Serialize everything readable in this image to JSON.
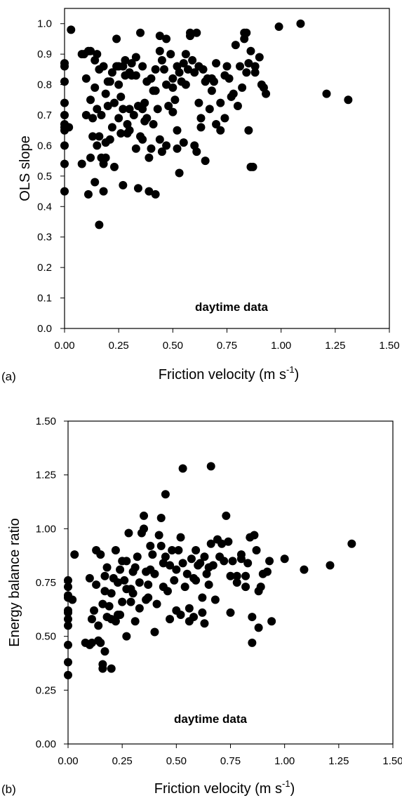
{
  "chart_data": [
    {
      "type": "scatter",
      "panel": "(a)",
      "annotation": "daytime data",
      "xlabel": "Friction velocity (m s",
      "xlabel_sup": "-1",
      "xlabel_end": ")",
      "ylabel": "OLS slope",
      "xlim": [
        0,
        1.5
      ],
      "ylim": [
        0,
        1.05
      ],
      "xticks": [
        "0.00",
        "0.25",
        "0.50",
        "0.75",
        "1.00",
        "1.25",
        "1.50"
      ],
      "yticks": [
        "0.0",
        "0.1",
        "0.2",
        "0.3",
        "0.4",
        "0.5",
        "0.6",
        "0.7",
        "0.8",
        "0.9",
        "1.0"
      ],
      "grid": false,
      "x": [
        0.0,
        0.0,
        0.0,
        0.0,
        0.0,
        0.0,
        0.0,
        0.0,
        0.0,
        0.0,
        0.0,
        0.03,
        0.02,
        0.08,
        0.09,
        0.1,
        0.1,
        0.11,
        0.12,
        0.12,
        0.13,
        0.13,
        0.14,
        0.14,
        0.15,
        0.15,
        0.16,
        0.16,
        0.17,
        0.17,
        0.18,
        0.18,
        0.19,
        0.19,
        0.2,
        0.2,
        0.21,
        0.22,
        0.22,
        0.23,
        0.24,
        0.24,
        0.25,
        0.25,
        0.26,
        0.26,
        0.27,
        0.27,
        0.28,
        0.28,
        0.29,
        0.3,
        0.3,
        0.31,
        0.31,
        0.32,
        0.33,
        0.33,
        0.34,
        0.35,
        0.35,
        0.36,
        0.36,
        0.37,
        0.38,
        0.38,
        0.39,
        0.4,
        0.4,
        0.41,
        0.42,
        0.42,
        0.43,
        0.44,
        0.44,
        0.45,
        0.45,
        0.46,
        0.47,
        0.47,
        0.48,
        0.49,
        0.5,
        0.5,
        0.51,
        0.52,
        0.52,
        0.53,
        0.54,
        0.55,
        0.55,
        0.56,
        0.57,
        0.58,
        0.59,
        0.6,
        0.6,
        0.61,
        0.62,
        0.63,
        0.63,
        0.64,
        0.65,
        0.66,
        0.67,
        0.68,
        0.7,
        0.7,
        0.72,
        0.74,
        0.75,
        0.76,
        0.78,
        0.8,
        0.81,
        0.82,
        0.83,
        0.84,
        0.85,
        0.85,
        0.86,
        0.87,
        0.88,
        0.9,
        0.92,
        0.93,
        0.99,
        1.09,
        1.21,
        1.31,
        0.16,
        0.11,
        0.14,
        0.18,
        0.27,
        0.34,
        0.39,
        0.42,
        0.53,
        0.86,
        0.44,
        0.58,
        0.33,
        0.23,
        0.21,
        0.12,
        0.65,
        0.72,
        0.47,
        0.36,
        0.25,
        0.29,
        0.52,
        0.61,
        0.69,
        0.74,
        0.79,
        0.83,
        0.91,
        0.19,
        0.08,
        0.15,
        0.3,
        0.37,
        0.41,
        0.5,
        0.56,
        0.62,
        0.68,
        0.77,
        0.84,
        0.88
      ],
      "y": [
        0.87,
        0.86,
        0.81,
        0.74,
        0.7,
        0.67,
        0.65,
        0.6,
        0.54,
        0.45,
        0.66,
        0.98,
        0.66,
        0.54,
        0.9,
        0.82,
        0.7,
        0.91,
        0.91,
        0.75,
        0.63,
        0.69,
        0.79,
        0.88,
        0.9,
        0.72,
        0.85,
        0.63,
        0.7,
        0.56,
        0.86,
        0.54,
        0.61,
        0.77,
        0.73,
        0.81,
        0.62,
        0.84,
        0.66,
        0.74,
        0.86,
        0.95,
        0.8,
        0.69,
        0.76,
        0.64,
        0.72,
        0.86,
        0.88,
        0.83,
        0.64,
        0.65,
        0.84,
        0.87,
        0.83,
        0.7,
        0.83,
        0.89,
        0.73,
        0.97,
        0.63,
        0.86,
        0.72,
        0.74,
        0.69,
        0.81,
        0.56,
        0.82,
        0.59,
        0.67,
        0.78,
        0.85,
        0.72,
        0.96,
        0.91,
        0.58,
        0.88,
        0.85,
        0.8,
        0.95,
        0.73,
        0.9,
        0.82,
        0.79,
        0.75,
        0.86,
        0.59,
        0.84,
        0.81,
        0.87,
        0.61,
        0.8,
        0.85,
        0.97,
        0.88,
        0.84,
        0.6,
        0.97,
        0.86,
        0.66,
        0.69,
        0.85,
        0.81,
        0.82,
        0.72,
        0.78,
        0.87,
        0.67,
        0.74,
        0.69,
        0.86,
        0.82,
        0.77,
        0.73,
        0.86,
        0.79,
        0.97,
        0.84,
        0.65,
        0.87,
        0.91,
        0.53,
        0.84,
        0.89,
        0.79,
        0.77,
        0.99,
        1.0,
        0.77,
        0.75,
        0.34,
        0.44,
        0.48,
        0.45,
        0.47,
        0.46,
        0.45,
        0.44,
        0.51,
        0.53,
        0.62,
        0.96,
        0.59,
        0.53,
        0.81,
        0.56,
        0.55,
        0.65,
        0.6,
        0.62,
        0.86,
        0.67,
        0.65,
        0.58,
        0.81,
        0.83,
        0.93,
        0.95,
        0.8,
        0.56,
        0.9,
        0.6,
        0.72,
        0.68,
        0.78,
        0.71,
        0.9,
        0.74,
        0.82,
        0.76,
        0.97,
        0.86
      ]
    },
    {
      "type": "scatter",
      "panel": "(b)",
      "annotation": "daytime data",
      "xlabel": "Friction velocity (m s",
      "xlabel_sup": "-1",
      "xlabel_end": ")",
      "ylabel": "Energy balance ratio",
      "xlim": [
        0,
        1.5
      ],
      "ylim": [
        0,
        1.5
      ],
      "xticks": [
        "0.00",
        "0.25",
        "0.50",
        "0.75",
        "1.00",
        "1.25",
        "1.50"
      ],
      "yticks": [
        "0.00",
        "0.25",
        "0.50",
        "0.75",
        "1.00",
        "1.25",
        "1.50"
      ],
      "grid": false,
      "x": [
        0.0,
        0.0,
        0.0,
        0.0,
        0.0,
        0.0,
        0.0,
        0.0,
        0.0,
        0.0,
        0.0,
        0.02,
        0.03,
        0.08,
        0.1,
        0.1,
        0.11,
        0.12,
        0.13,
        0.13,
        0.14,
        0.15,
        0.15,
        0.16,
        0.16,
        0.17,
        0.17,
        0.18,
        0.18,
        0.19,
        0.2,
        0.2,
        0.21,
        0.22,
        0.23,
        0.23,
        0.24,
        0.25,
        0.25,
        0.26,
        0.27,
        0.27,
        0.28,
        0.29,
        0.3,
        0.3,
        0.31,
        0.32,
        0.33,
        0.33,
        0.34,
        0.35,
        0.36,
        0.36,
        0.37,
        0.38,
        0.39,
        0.4,
        0.41,
        0.42,
        0.43,
        0.44,
        0.44,
        0.45,
        0.46,
        0.47,
        0.48,
        0.49,
        0.5,
        0.51,
        0.52,
        0.53,
        0.54,
        0.55,
        0.56,
        0.57,
        0.58,
        0.59,
        0.6,
        0.61,
        0.62,
        0.63,
        0.64,
        0.65,
        0.66,
        0.67,
        0.68,
        0.7,
        0.72,
        0.74,
        0.75,
        0.76,
        0.78,
        0.8,
        0.82,
        0.83,
        0.84,
        0.85,
        0.86,
        0.87,
        0.88,
        0.89,
        0.9,
        0.92,
        0.94,
        1.0,
        1.09,
        1.21,
        1.31,
        0.53,
        0.66,
        0.45,
        0.35,
        0.43,
        0.38,
        0.27,
        0.47,
        0.56,
        0.62,
        0.69,
        0.73,
        0.8,
        0.85,
        0.16,
        0.17,
        0.2,
        0.14,
        0.11,
        0.24,
        0.31,
        0.4,
        0.52,
        0.58,
        0.63,
        0.75,
        0.82,
        0.88,
        0.93,
        0.22,
        0.29,
        0.37,
        0.5,
        0.59,
        0.65,
        0.71,
        0.78
      ],
      "y": [
        0.76,
        0.73,
        0.69,
        0.61,
        0.58,
        0.55,
        0.46,
        0.38,
        0.32,
        0.68,
        0.62,
        0.67,
        0.88,
        0.47,
        0.77,
        0.46,
        0.58,
        0.62,
        0.9,
        0.74,
        0.55,
        0.88,
        0.47,
        0.65,
        0.37,
        0.78,
        0.71,
        0.59,
        0.82,
        0.64,
        0.58,
        0.7,
        0.77,
        0.9,
        0.6,
        0.75,
        0.81,
        0.85,
        0.66,
        0.76,
        0.85,
        0.72,
        0.98,
        0.66,
        0.8,
        0.7,
        0.82,
        0.87,
        0.75,
        0.63,
        0.98,
        1.06,
        0.8,
        0.67,
        0.74,
        0.92,
        0.88,
        0.79,
        0.65,
        0.97,
        0.92,
        0.84,
        0.73,
        0.87,
        0.71,
        0.83,
        0.9,
        0.76,
        0.81,
        0.9,
        0.96,
        0.84,
        0.73,
        0.79,
        0.63,
        0.86,
        0.77,
        0.9,
        0.83,
        0.84,
        0.68,
        0.87,
        0.79,
        0.74,
        0.93,
        0.83,
        0.67,
        0.87,
        0.85,
        0.94,
        0.78,
        0.85,
        0.75,
        0.86,
        0.78,
        0.84,
        0.96,
        0.47,
        0.97,
        0.9,
        0.71,
        0.73,
        0.79,
        0.8,
        0.57,
        0.86,
        0.81,
        0.83,
        0.93,
        1.28,
        1.29,
        1.16,
        1.0,
        1.05,
        0.81,
        0.5,
        0.58,
        0.57,
        0.61,
        0.95,
        1.06,
        0.88,
        0.59,
        0.35,
        0.43,
        0.35,
        0.48,
        0.47,
        0.6,
        0.57,
        0.52,
        0.6,
        0.59,
        0.56,
        0.61,
        0.73,
        0.54,
        0.85,
        0.57,
        0.72,
        0.68,
        0.62,
        0.76,
        0.82,
        0.93,
        0.78
      ]
    }
  ]
}
